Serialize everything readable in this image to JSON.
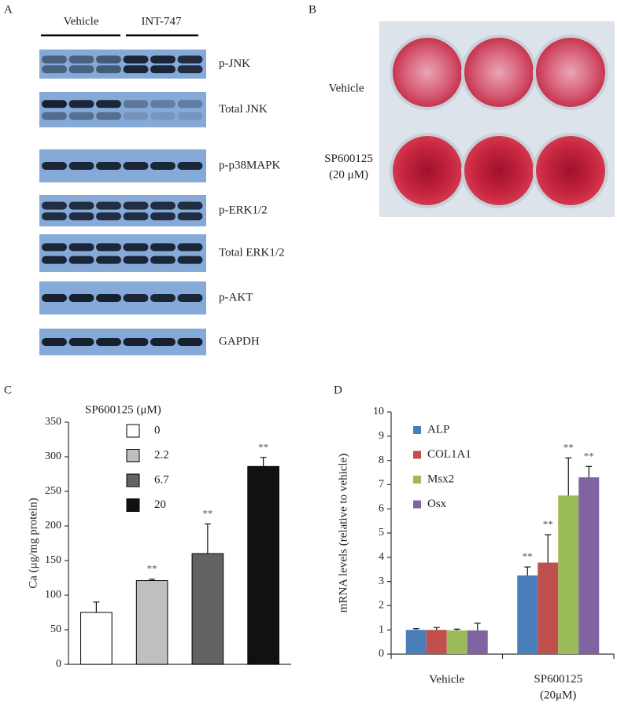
{
  "panel_a": {
    "label": "A",
    "groups": [
      "Vehicle",
      "INT-747"
    ],
    "blots": [
      "p-JNK",
      "Total JNK",
      "p-p38MAPK",
      "p-ERK1/2",
      "Total ERK1/2",
      "p-AKT",
      "GAPDH"
    ]
  },
  "panel_b": {
    "label": "B",
    "rows": [
      "Vehicle",
      "SP600125\n(20 μM)"
    ]
  },
  "chart_data": [
    {
      "panel": "C",
      "type": "bar",
      "ylabel": "Ca (μg/mg protein)",
      "legend_title": "SP600125 (μM)",
      "categories": [
        null
      ],
      "ylim": [
        0,
        350
      ],
      "yticks": [
        0,
        50,
        100,
        150,
        200,
        250,
        300,
        350
      ],
      "series": [
        {
          "name": "0",
          "color": "#ffffff",
          "values": [
            75
          ],
          "errors": [
            15
          ],
          "significance": [
            null
          ]
        },
        {
          "name": "2.2",
          "color": "#bfbfbf",
          "values": [
            121
          ],
          "errors": [
            2
          ],
          "significance": [
            "**"
          ]
        },
        {
          "name": "6.7",
          "color": "#636363",
          "values": [
            160
          ],
          "errors": [
            43
          ],
          "significance": [
            "**"
          ]
        },
        {
          "name": "20",
          "color": "#111111",
          "values": [
            286
          ],
          "errors": [
            13
          ],
          "significance": [
            "**"
          ]
        }
      ]
    },
    {
      "panel": "D",
      "type": "bar",
      "ylabel": "mRNA levels (relative to vehicle)",
      "categories": [
        "Vehicle",
        "SP600125\n(20μM)"
      ],
      "ylim": [
        0,
        10
      ],
      "yticks": [
        0,
        1,
        2,
        3,
        4,
        5,
        6,
        7,
        8,
        9,
        10
      ],
      "series": [
        {
          "name": "ALP",
          "color": "#4a7ebb",
          "values": [
            1.0,
            3.25
          ],
          "errors": [
            0.05,
            0.35
          ],
          "significance": [
            null,
            "**"
          ]
        },
        {
          "name": "COL1A1",
          "color": "#c0504d",
          "values": [
            1.0,
            3.78
          ],
          "errors": [
            0.1,
            1.15
          ],
          "significance": [
            null,
            "**"
          ]
        },
        {
          "name": "Msx2",
          "color": "#9bbb59",
          "values": [
            0.98,
            6.55
          ],
          "errors": [
            0.05,
            1.55
          ],
          "significance": [
            null,
            "**"
          ]
        },
        {
          "name": "Osx",
          "color": "#8064a2",
          "values": [
            0.98,
            7.3
          ],
          "errors": [
            0.3,
            0.45
          ],
          "significance": [
            null,
            "**"
          ]
        }
      ]
    }
  ]
}
